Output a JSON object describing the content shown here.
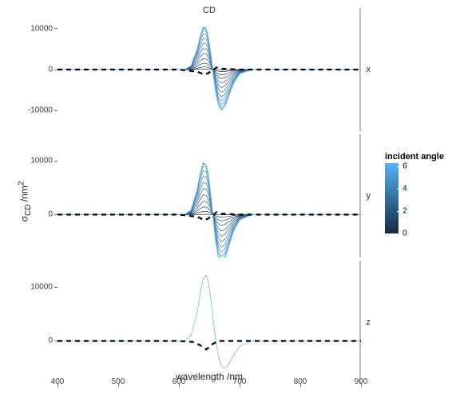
{
  "title": "CD",
  "ylabel": "σ_CD /nm²",
  "xlabel": "wavelength /nm",
  "panels": [
    {
      "label": "x",
      "ymin": -15000,
      "ymax": 15000,
      "yticks": [
        -10000,
        0,
        10000
      ]
    },
    {
      "label": "y",
      "ymin": -8000,
      "ymax": 15000,
      "yticks": [
        0,
        10000
      ]
    },
    {
      "label": "z",
      "ymin": -8000,
      "ymax": 15000,
      "yticks": [
        0,
        10000
      ]
    }
  ],
  "xmin": 400,
  "xmax": 900,
  "xticks": [
    400,
    500,
    600,
    700,
    800,
    900
  ],
  "legend": {
    "title": "incident angle",
    "min": 0,
    "max": 6.283,
    "colorLow": "#132b43",
    "colorHigh": "#56b1f7",
    "ticks": [
      0,
      2,
      4,
      6
    ]
  },
  "dashedColor": "#000000",
  "lineWidth": 0.7,
  "nSeries": 13,
  "xGrid": [
    400,
    420,
    440,
    460,
    480,
    500,
    520,
    540,
    560,
    580,
    600,
    610,
    620,
    630,
    635,
    640,
    645,
    648,
    650,
    652,
    655,
    660,
    665,
    670,
    675,
    680,
    690,
    700,
    720,
    740,
    760,
    780,
    800,
    850,
    900
  ],
  "panelData": {
    "x": {
      "shapeCenterA": 645,
      "shapeCenterB": 665,
      "ampsPos": [
        100,
        900,
        2200,
        3800,
        5600,
        7400,
        9200,
        11000,
        12600,
        13900,
        14700,
        15100,
        15300
      ],
      "ampsNeg": [
        60,
        600,
        1500,
        2600,
        3900,
        5200,
        6500,
        7800,
        9000,
        10000,
        10800,
        11300,
        11600
      ],
      "dashed": [
        [
          400,
          0
        ],
        [
          600,
          0
        ],
        [
          630,
          -500
        ],
        [
          642,
          -1200
        ],
        [
          648,
          -900
        ],
        [
          655,
          -200
        ],
        [
          662,
          500
        ],
        [
          670,
          200
        ],
        [
          700,
          0
        ],
        [
          900,
          0
        ]
      ]
    },
    "y": {
      "shapeCenterA": 645,
      "shapeCenterB": 665,
      "ampsPos": [
        80,
        850,
        2050,
        3550,
        5250,
        6950,
        8650,
        10350,
        11850,
        13050,
        13800,
        14120,
        14250
      ],
      "ampsNeg": [
        50,
        550,
        1380,
        2400,
        3600,
        4800,
        6000,
        7200,
        8300,
        9200,
        9900,
        10400,
        10650
      ],
      "dashed": [
        [
          400,
          0
        ],
        [
          600,
          0
        ],
        [
          630,
          -400
        ],
        [
          642,
          -1000
        ],
        [
          648,
          -750
        ],
        [
          655,
          -150
        ],
        [
          662,
          450
        ],
        [
          670,
          180
        ],
        [
          700,
          0
        ],
        [
          900,
          0
        ]
      ]
    },
    "z": {
      "shapeCenterA": 645,
      "shapeCenterB": 670,
      "ampsPos": [
        14000
      ],
      "ampsNeg": [
        5800
      ],
      "singleColor": "#56b1f7",
      "dashed": [
        [
          400,
          0
        ],
        [
          600,
          0
        ],
        [
          625,
          -200
        ],
        [
          638,
          -1000
        ],
        [
          645,
          -1600
        ],
        [
          650,
          -1100
        ],
        [
          655,
          -600
        ],
        [
          660,
          -300
        ],
        [
          668,
          0
        ],
        [
          900,
          0
        ]
      ]
    }
  }
}
